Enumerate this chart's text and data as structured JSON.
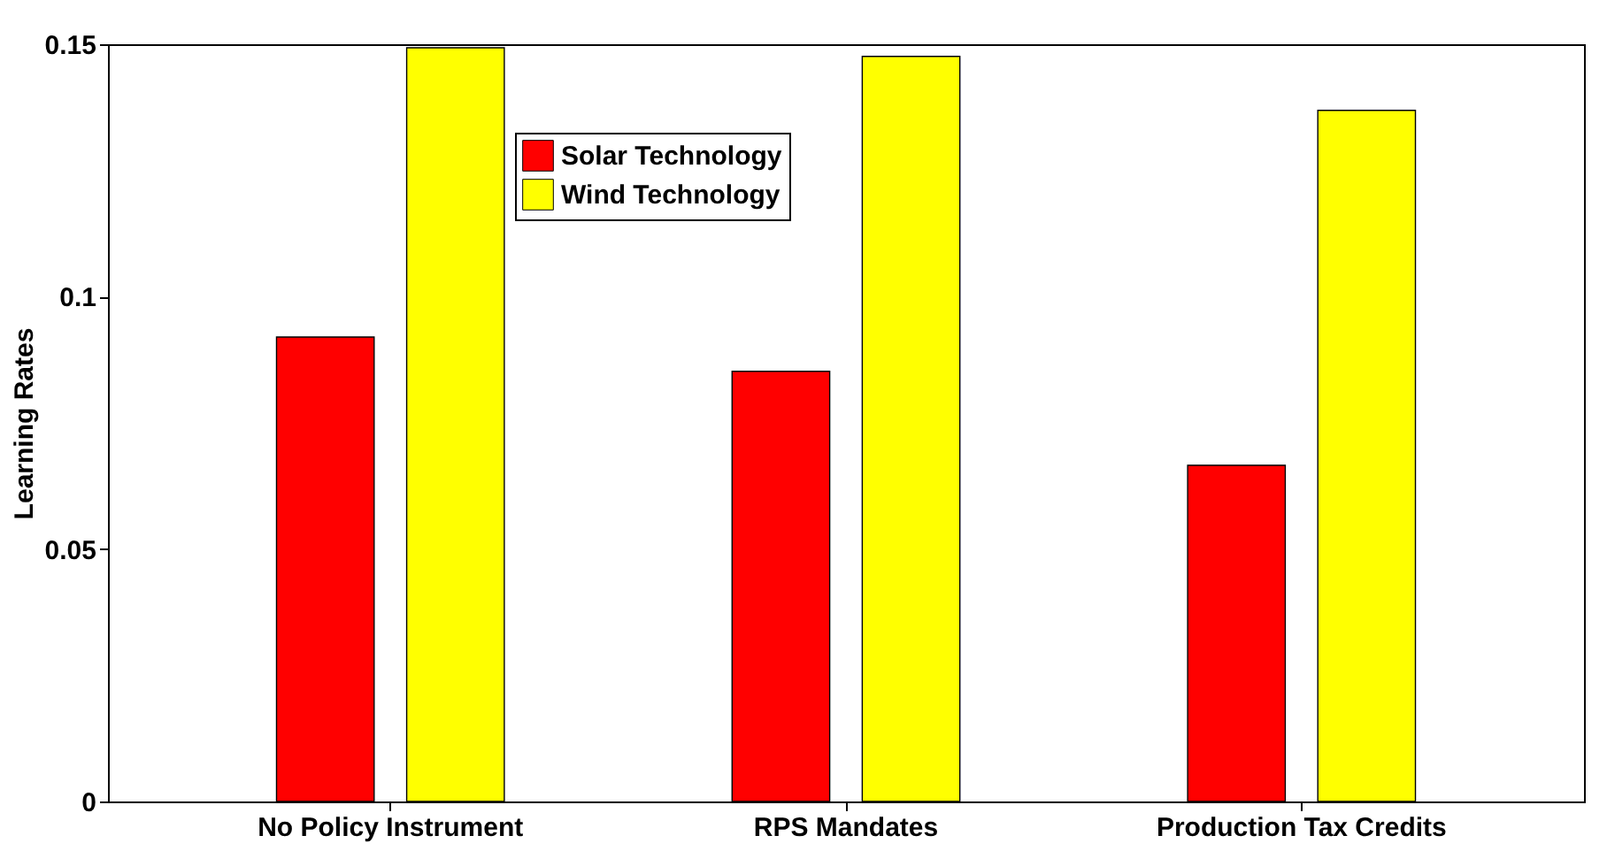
{
  "chart_data": {
    "type": "bar",
    "ylabel": "Learning Rates",
    "categories": [
      "No Policy Instrument",
      "RPS Mandates",
      "Production Tax Credits"
    ],
    "series": [
      {
        "name": "Solar Technology",
        "color": "#ff0000",
        "values": [
          0.092,
          0.0852,
          0.0666
        ]
      },
      {
        "name": "Wind Technology",
        "color": "#ffff00",
        "values": [
          0.1493,
          0.1476,
          0.1369
        ]
      }
    ],
    "ylim": [
      0,
      0.15
    ],
    "yticks": [
      0,
      0.05,
      0.1,
      0.15
    ],
    "grid": false,
    "legend": "top"
  }
}
